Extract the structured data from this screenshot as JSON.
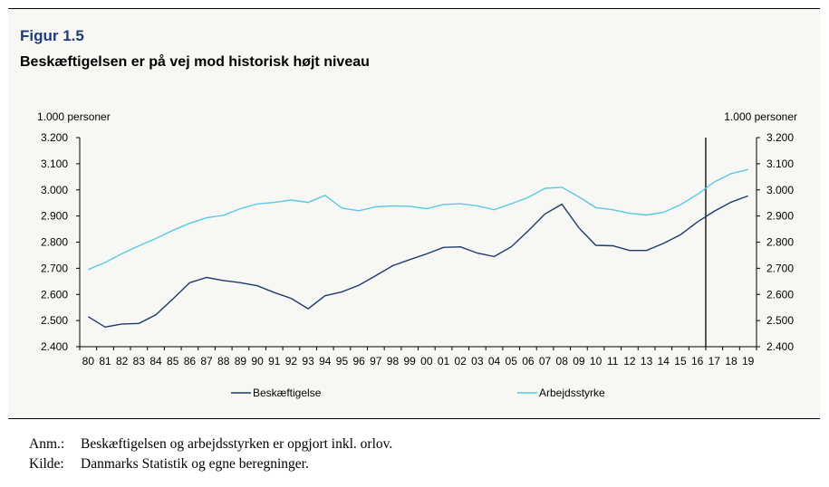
{
  "figure": {
    "label": "Figur 1.5",
    "title": "Beskæftigelsen er på vej mod historisk højt niveau"
  },
  "chart_data": {
    "type": "line",
    "title": "Beskæftigelsen er på vej mod historisk højt niveau",
    "ylabel_left": "1.000 personer",
    "ylabel_right": "1.000 personer",
    "ylim": [
      2400,
      3200
    ],
    "yticks": [
      "2.400",
      "2.500",
      "2.600",
      "2.700",
      "2.800",
      "2.900",
      "3.000",
      "3.100",
      "3.200"
    ],
    "categories": [
      "80",
      "81",
      "82",
      "83",
      "84",
      "85",
      "86",
      "87",
      "88",
      "89",
      "90",
      "91",
      "92",
      "93",
      "94",
      "95",
      "96",
      "97",
      "98",
      "99",
      "00",
      "01",
      "02",
      "03",
      "04",
      "05",
      "06",
      "07",
      "08",
      "09",
      "10",
      "11",
      "12",
      "13",
      "14",
      "15",
      "16",
      "17",
      "18",
      "19"
    ],
    "forecast_divider_after": "16",
    "legend_position": "bottom",
    "grid": false,
    "series": [
      {
        "name": "Beskæftigelse",
        "color": "#1f3a6e",
        "values": [
          2515,
          2475,
          2487,
          2489,
          2522,
          2582,
          2645,
          2665,
          2653,
          2645,
          2633,
          2607,
          2585,
          2545,
          2595,
          2610,
          2635,
          2672,
          2710,
          2733,
          2755,
          2780,
          2782,
          2758,
          2745,
          2782,
          2843,
          2908,
          2945,
          2855,
          2788,
          2786,
          2768,
          2768,
          2795,
          2828,
          2877,
          2918,
          2953,
          2977
        ]
      },
      {
        "name": "Arbejdsstyrke",
        "color": "#5bc8e8",
        "values": [
          2695,
          2722,
          2756,
          2786,
          2814,
          2845,
          2872,
          2893,
          2903,
          2928,
          2946,
          2952,
          2961,
          2952,
          2979,
          2930,
          2920,
          2935,
          2939,
          2937,
          2928,
          2944,
          2947,
          2939,
          2924,
          2947,
          2971,
          3006,
          3010,
          2973,
          2932,
          2924,
          2910,
          2904,
          2914,
          2943,
          2982,
          3030,
          3062,
          3078
        ]
      }
    ]
  },
  "notes": [
    {
      "key": "Anm.:",
      "text": "Beskæftigelsen og arbejdsstyrken er opgjort inkl. orlov."
    },
    {
      "key": "Kilde:",
      "text": "Danmarks Statistik og egne beregninger."
    }
  ]
}
